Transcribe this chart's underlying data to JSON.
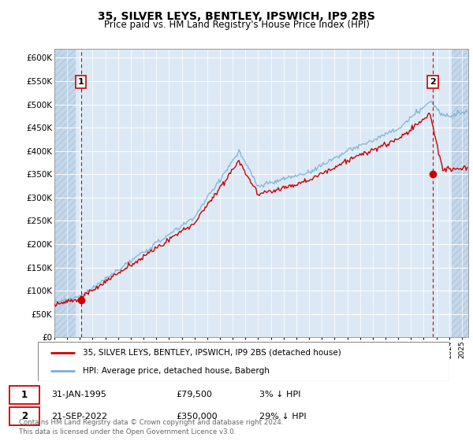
{
  "title": "35, SILVER LEYS, BENTLEY, IPSWICH, IP9 2BS",
  "subtitle": "Price paid vs. HM Land Registry's House Price Index (HPI)",
  "ylabel_ticks": [
    "£0",
    "£50K",
    "£100K",
    "£150K",
    "£200K",
    "£250K",
    "£300K",
    "£350K",
    "£400K",
    "£450K",
    "£500K",
    "£550K",
    "£600K"
  ],
  "ylim": [
    0,
    620000
  ],
  "yticks": [
    0,
    50000,
    100000,
    150000,
    200000,
    250000,
    300000,
    350000,
    400000,
    450000,
    500000,
    550000,
    600000
  ],
  "xlim_start": 1993.0,
  "xlim_end": 2025.5,
  "sale1_x": 1995.08,
  "sale1_y": 79500,
  "sale2_x": 2022.72,
  "sale2_y": 350000,
  "legend_line1": "35, SILVER LEYS, BENTLEY, IPSWICH, IP9 2BS (detached house)",
  "legend_line2": "HPI: Average price, detached house, Babergh",
  "sale1_date": "31-JAN-1995",
  "sale1_price": "£79,500",
  "sale1_hpi": "3% ↓ HPI",
  "sale2_date": "21-SEP-2022",
  "sale2_price": "£350,000",
  "sale2_hpi": "29% ↓ HPI",
  "footer": "Contains HM Land Registry data © Crown copyright and database right 2024.\nThis data is licensed under the Open Government Licence v3.0.",
  "bg_color": "#dce9f5",
  "hatch_color": "#c5d8ea",
  "grid_color": "#ffffff",
  "red_line_color": "#cc0000",
  "blue_line_color": "#7aaed6",
  "sale_dot_color": "#cc0000",
  "dashed_line_color": "#cc0000"
}
